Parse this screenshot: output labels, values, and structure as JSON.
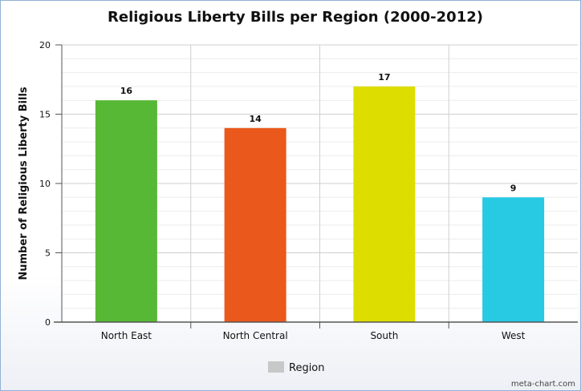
{
  "chart_data": {
    "type": "bar",
    "title": "Religious Liberty Bills per Region (2000-2012)",
    "xlabel": "",
    "ylabel": "Number of Religious Liberty Bills",
    "categories": [
      "North East",
      "North Central",
      "South",
      "West"
    ],
    "values": [
      16,
      14,
      17,
      9
    ],
    "colors": [
      "#56b834",
      "#ea581c",
      "#dddd00",
      "#27c9e3"
    ],
    "ylim": [
      0,
      20
    ],
    "yticks": [
      "0",
      "5",
      "10",
      "15",
      "20"
    ],
    "grid": true,
    "legend": {
      "position": "bottom",
      "label": "Region",
      "color": "#c8c8c8"
    },
    "credit": "meta-chart.com"
  }
}
